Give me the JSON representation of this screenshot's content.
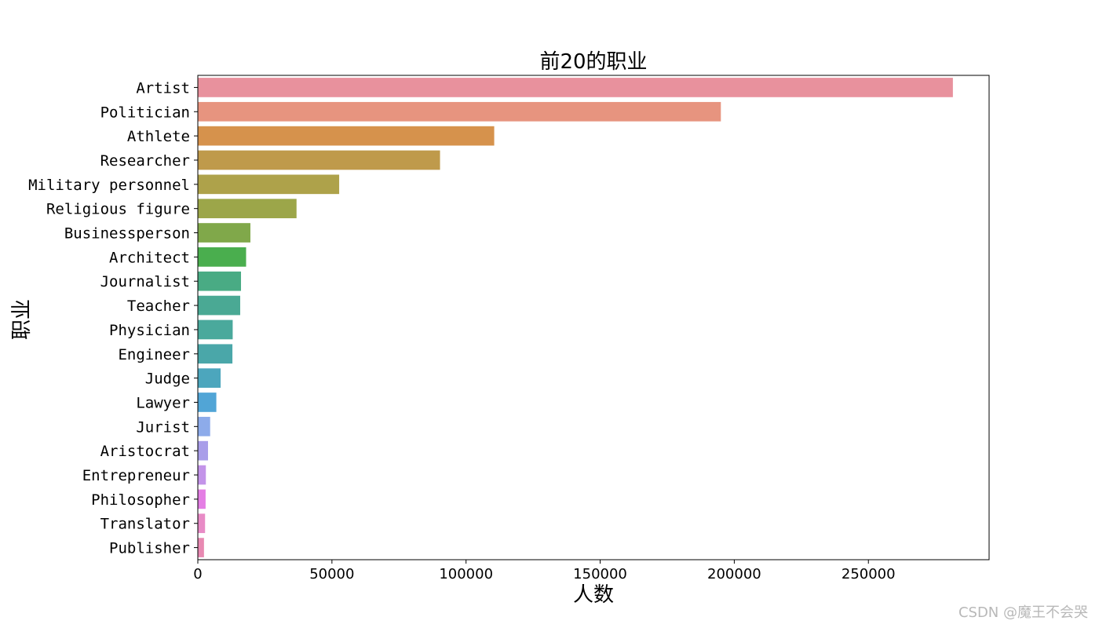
{
  "chart_data": {
    "type": "bar",
    "orientation": "horizontal",
    "title": "前20的职业",
    "xlabel": "人数",
    "ylabel": "职业",
    "xlim": [
      0,
      295000
    ],
    "xticks": [
      0,
      50000,
      100000,
      150000,
      200000,
      250000
    ],
    "grid": false,
    "categories": [
      "Artist",
      "Politician",
      "Athlete",
      "Researcher",
      "Military personnel",
      "Religious figure",
      "Businessperson",
      "Architect",
      "Journalist",
      "Teacher",
      "Physician",
      "Engineer",
      "Judge",
      "Lawyer",
      "Jurist",
      "Aristocrat",
      "Entrepreneur",
      "Philosopher",
      "Translator",
      "Publisher"
    ],
    "values": [
      281500,
      195000,
      110500,
      90300,
      52700,
      36800,
      19600,
      18000,
      16100,
      15800,
      13000,
      12900,
      8500,
      6900,
      4600,
      3800,
      3000,
      2900,
      2700,
      2300
    ],
    "colors": [
      "#e8919d",
      "#e7947f",
      "#d6924c",
      "#bf9a4b",
      "#aea24a",
      "#9ca649",
      "#80a84a",
      "#4aae4e",
      "#49ab84",
      "#4aa994",
      "#4aa99c",
      "#4aa7a9",
      "#4ca6bd",
      "#51a5d6",
      "#8dabea",
      "#a99ee9",
      "#c394e9",
      "#e47ee4",
      "#e88bc6",
      "#e889b2"
    ]
  },
  "watermark": "CSDN @魔王不会哭"
}
